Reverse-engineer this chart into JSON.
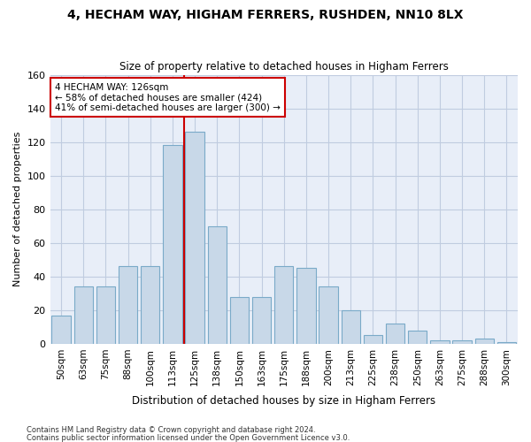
{
  "title": "4, HECHAM WAY, HIGHAM FERRERS, RUSHDEN, NN10 8LX",
  "subtitle": "Size of property relative to detached houses in Higham Ferrers",
  "xlabel": "Distribution of detached houses by size in Higham Ferrers",
  "ylabel": "Number of detached properties",
  "bar_categories": [
    "50sqm",
    "63sqm",
    "75sqm",
    "88sqm",
    "100sqm",
    "113sqm",
    "125sqm",
    "138sqm",
    "150sqm",
    "163sqm",
    "175sqm",
    "188sqm",
    "200sqm",
    "213sqm",
    "225sqm",
    "238sqm",
    "250sqm",
    "263sqm",
    "275sqm",
    "288sqm",
    "300sqm"
  ],
  "bar_values": [
    17,
    34,
    34,
    46,
    46,
    118,
    126,
    70,
    28,
    28,
    46,
    45,
    34,
    20,
    5,
    12,
    8,
    2,
    2,
    3,
    1
  ],
  "bar_color": "#c8d8e8",
  "bar_edgecolor": "#7aaac8",
  "grid_color": "#c0cce0",
  "background_color": "#e8eef8",
  "vline_color": "#cc0000",
  "annotation_text": "4 HECHAM WAY: 126sqm\n← 58% of detached houses are smaller (424)\n41% of semi-detached houses are larger (300) →",
  "annotation_box_color": "#ffffff",
  "annotation_box_edgecolor": "#cc0000",
  "ylim": [
    0,
    160
  ],
  "yticks": [
    0,
    20,
    40,
    60,
    80,
    100,
    120,
    140,
    160
  ],
  "footnote1": "Contains HM Land Registry data © Crown copyright and database right 2024.",
  "footnote2": "Contains public sector information licensed under the Open Government Licence v3.0."
}
